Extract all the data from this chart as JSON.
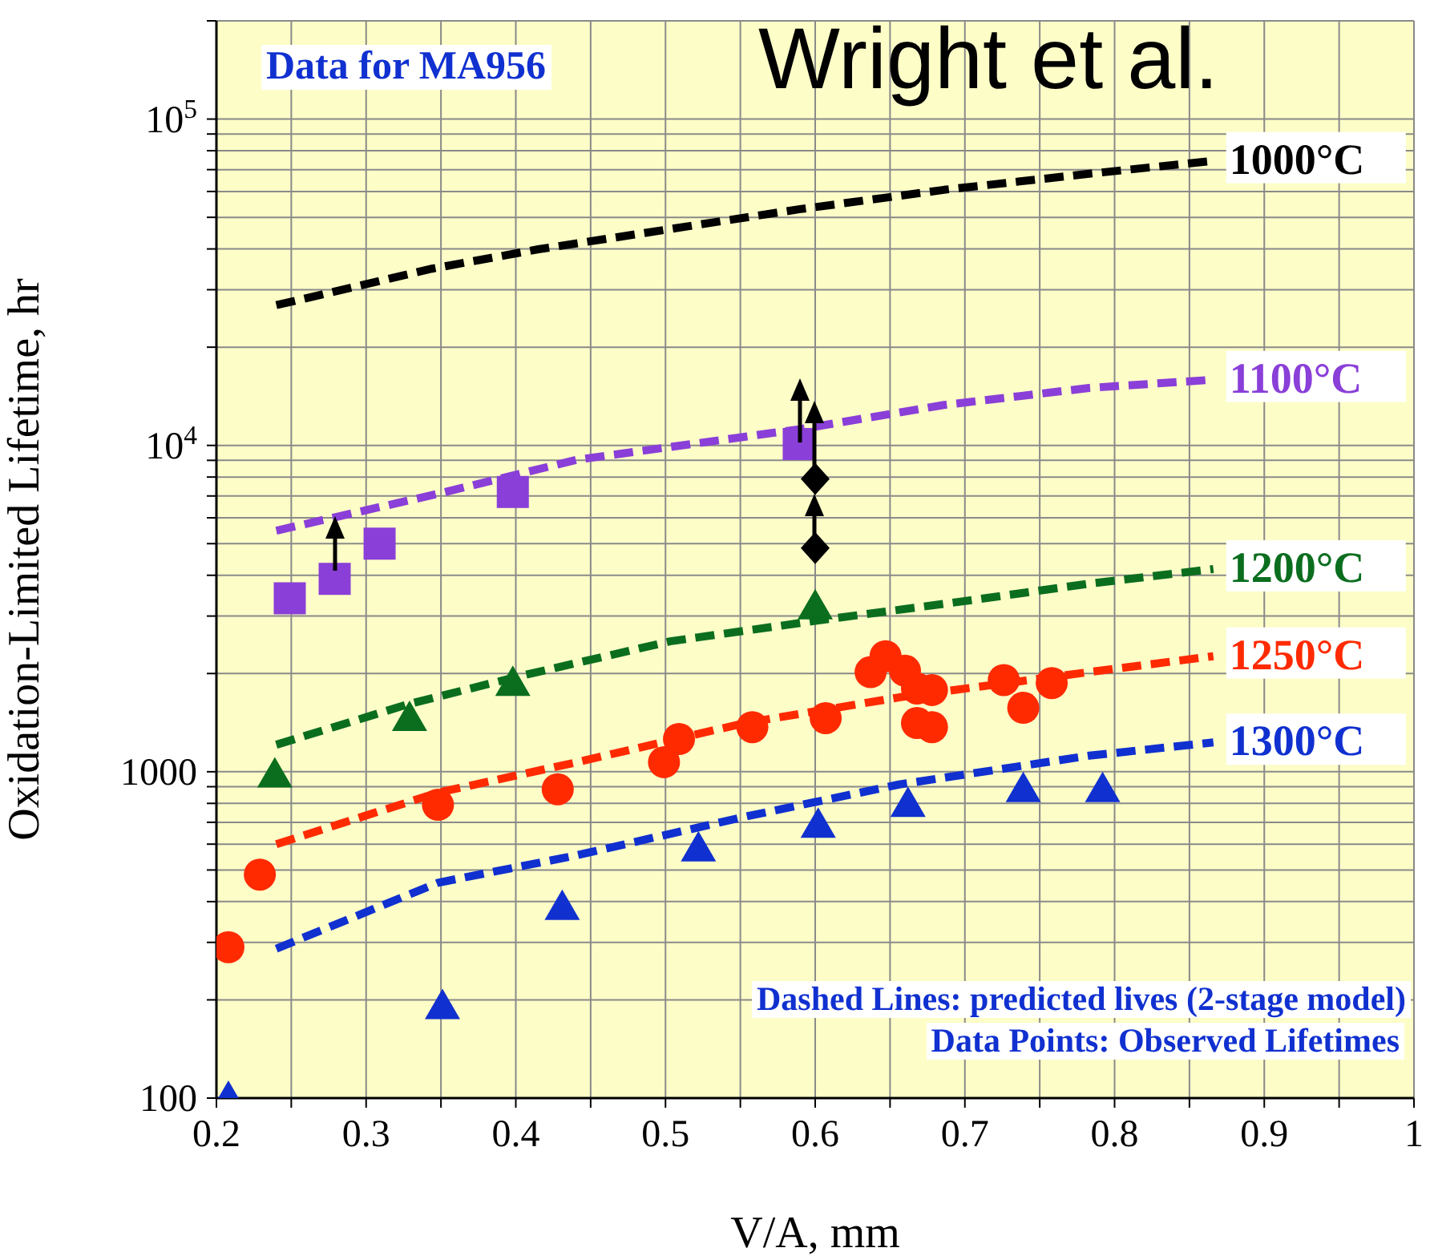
{
  "chart_data": {
    "type": "scatter",
    "xlabel": "V/A, mm",
    "ylabel": "Oxidation-Limited Lifetime, hr",
    "annotations": [
      "Data for MA956",
      "Wright et al.",
      "Dashed Lines: predicted lives (2-stage model)",
      "Data Points: Observed Lifetimes"
    ],
    "xlim": [
      0.2,
      1
    ],
    "ylim": [
      100,
      200000
    ],
    "log": "y",
    "grid": true,
    "xticks": [
      0.2,
      {
        "value": 0.25,
        "label": null
      },
      0.3,
      {
        "value": 0.35,
        "label": null
      },
      0.4,
      {
        "value": 0.45,
        "label": null
      },
      0.5,
      {
        "value": 0.55,
        "label": null
      },
      0.6,
      {
        "value": 0.65,
        "label": null
      },
      0.7,
      {
        "value": 0.75,
        "label": null
      },
      0.8,
      {
        "value": 0.85,
        "label": null
      },
      0.9,
      {
        "value": 0.95,
        "label": null
      },
      1
    ],
    "yticks": [
      100,
      {
        "value": 200,
        "label": null
      },
      {
        "value": 300,
        "label": null
      },
      {
        "value": 400,
        "label": null
      },
      {
        "value": 500,
        "label": null
      },
      {
        "value": 600,
        "label": null
      },
      {
        "value": 700,
        "label": null
      },
      {
        "value": 800,
        "label": null
      },
      {
        "value": 900,
        "label": null
      },
      1000,
      {
        "value": 2000,
        "label": null
      },
      {
        "value": 3000,
        "label": null
      },
      {
        "value": 4000,
        "label": null
      },
      {
        "value": 5000,
        "label": null
      },
      {
        "value": 6000,
        "label": null
      },
      {
        "value": 7000,
        "label": null
      },
      {
        "value": 8000,
        "label": null
      },
      {
        "value": 9000,
        "label": null
      },
      {
        "value": 10000,
        "label": "10$^{4}$"
      },
      {
        "value": 20000,
        "label": null
      },
      {
        "value": 30000,
        "label": null
      },
      {
        "value": 40000,
        "label": null
      },
      {
        "value": 50000,
        "label": null
      },
      {
        "value": 60000,
        "label": null
      },
      {
        "value": 70000,
        "label": null
      },
      {
        "value": 80000,
        "label": null
      },
      {
        "value": 90000,
        "label": null
      },
      {
        "value": 100000,
        "label": "10$^{5}$"
      },
      {
        "value": 200000,
        "label": null
      }
    ],
    "series": [
      {
        "type": "line",
        "name": "1000°C",
        "color": "#000000",
        "line_style": "dashed",
        "marker": "none",
        "x": [
          0.24,
          0.344,
          0.415,
          0.589,
          0.686,
          0.783,
          0.866
        ],
        "values": [
          26900,
          34800,
          39900,
          52900,
          60700,
          68000,
          74500
        ]
      },
      {
        "type": "line",
        "name": "1100°C",
        "color": "#8a3fd8",
        "line_style": "dashed",
        "marker": "none",
        "x": [
          0.24,
          0.348,
          0.441,
          0.589,
          0.686,
          0.783,
          0.866
        ],
        "values": [
          5480,
          7110,
          9040,
          11200,
          13300,
          15000,
          15900
        ]
      },
      {
        "type": "line",
        "name": "1200°C",
        "color": "#0b6e1f",
        "line_style": "dashed",
        "marker": "none",
        "x": [
          0.24,
          0.328,
          0.4,
          0.503,
          0.6,
          0.699,
          0.783,
          0.866
        ],
        "values": [
          1210,
          1610,
          1950,
          2510,
          2900,
          3330,
          3770,
          4180
        ]
      },
      {
        "type": "line",
        "name": "1250°C",
        "color": "#ff2a00",
        "line_style": "dashed",
        "marker": "none",
        "x": [
          0.24,
          0.348,
          0.441,
          0.553,
          0.656,
          0.783,
          0.866
        ],
        "values": [
          600,
          863,
          1070,
          1410,
          1690,
          2020,
          2260
        ]
      },
      {
        "type": "line",
        "name": "1300°C",
        "color": "#1030d0",
        "line_style": "dashed",
        "marker": "none",
        "x": [
          0.24,
          0.348,
          0.441,
          0.553,
          0.656,
          0.783,
          0.866
        ],
        "values": [
          287,
          457,
          555,
          728,
          914,
          1120,
          1230
        ]
      },
      {
        "type": "scatter",
        "color": "#8a3fd8",
        "marker": "square",
        "x": [
          0.249,
          0.279,
          0.309,
          0.398,
          0.589
        ],
        "values": [
          3400,
          3900,
          5000,
          7200,
          10100
        ]
      },
      {
        "type": "scatter",
        "color": "#000000",
        "marker": "diamond",
        "x": [
          0.6,
          0.6
        ],
        "values": [
          7900,
          4850
        ]
      },
      {
        "type": "scatter",
        "color": "#0b6e1f",
        "marker": "triangle",
        "x": [
          0.239,
          0.329,
          0.398,
          0.6
        ],
        "values": [
          980,
          1460,
          1870,
          3210
        ]
      },
      {
        "type": "scatter",
        "color": "#ff2a00",
        "marker": "circle",
        "x": [
          0.208,
          0.229,
          0.348,
          0.428,
          0.499,
          0.509,
          0.558,
          0.607,
          0.637,
          0.647,
          0.66,
          0.668,
          0.678,
          0.668,
          0.678,
          0.726,
          0.739,
          0.758
        ],
        "values": [
          290,
          484,
          792,
          884,
          1070,
          1260,
          1370,
          1460,
          2020,
          2260,
          2040,
          1800,
          1780,
          1410,
          1370,
          1910,
          1570,
          1870
        ]
      },
      {
        "type": "scatter",
        "color": "#1030d0",
        "marker": "triangle",
        "x": [
          0.208,
          0.351,
          0.431,
          0.522,
          0.602,
          0.662,
          0.739,
          0.792
        ],
        "values": [
          100,
          191,
          385,
          581,
          687,
          796,
          884,
          884
        ]
      }
    ]
  }
}
